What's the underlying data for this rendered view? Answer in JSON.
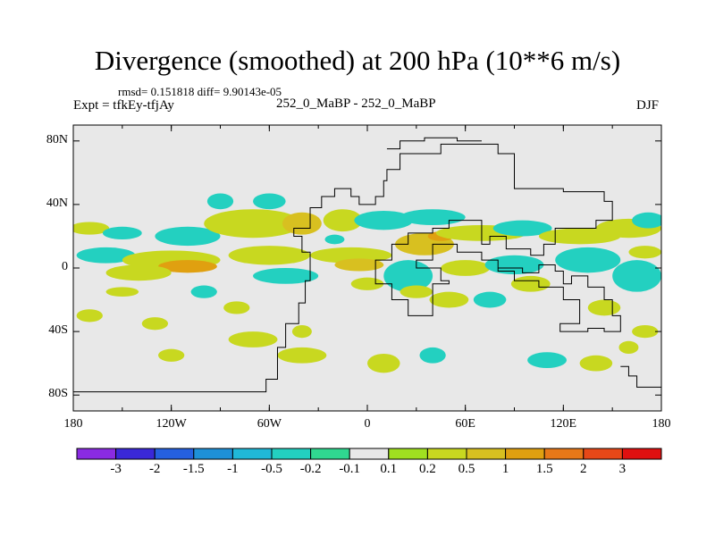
{
  "title": "Divergence (smoothed) at 200 hPa (10**6 m/s)",
  "stats": "rmsd= 0.151818 diff= 9.90143e-05",
  "experiment": "Expt = tfkEy-tfjAy",
  "runs": "252_0_MaBP - 252_0_MaBP",
  "season": "DJF",
  "chart_data": {
    "type": "heatmap",
    "xlim": [
      -180,
      180
    ],
    "ylim": [
      -90,
      90
    ],
    "x_ticks": [
      {
        "value": -180,
        "label": "180"
      },
      {
        "value": -120,
        "label": "120W"
      },
      {
        "value": -60,
        "label": "60W"
      },
      {
        "value": 0,
        "label": "0"
      },
      {
        "value": 60,
        "label": "60E"
      },
      {
        "value": 120,
        "label": "120E"
      },
      {
        "value": 180,
        "label": "180"
      }
    ],
    "y_ticks": [
      {
        "value": 80,
        "label": "80N"
      },
      {
        "value": 40,
        "label": "40N"
      },
      {
        "value": 0,
        "label": "0"
      },
      {
        "value": -40,
        "label": "40S"
      },
      {
        "value": -80,
        "label": "80S"
      }
    ],
    "colorbar": {
      "colors": [
        "#8a2be2",
        "#3a28d8",
        "#2560e0",
        "#1e90d8",
        "#20b8d8",
        "#23d0c0",
        "#30d890",
        "#e8e8e8",
        "#a0e020",
        "#c8d820",
        "#d8c020",
        "#e0a010",
        "#e87818",
        "#e84818",
        "#e01010"
      ],
      "labels": [
        "-3",
        "-2",
        "-1.5",
        "-1",
        "-0.5",
        "-0.2",
        "-0.1",
        "0.1",
        "0.2",
        "0.5",
        "1",
        "1.5",
        "2",
        "3"
      ]
    },
    "background_color": "#e8e8e8",
    "blobs": [
      {
        "lon": -170,
        "lat": 25,
        "rx": 12,
        "ry": 4,
        "level": 0.4
      },
      {
        "lon": -150,
        "lat": 22,
        "rx": 12,
        "ry": 4,
        "level": -0.3
      },
      {
        "lon": -110,
        "lat": 20,
        "rx": 20,
        "ry": 6,
        "level": -0.3
      },
      {
        "lon": -90,
        "lat": 42,
        "rx": 8,
        "ry": 5,
        "level": -0.3
      },
      {
        "lon": -70,
        "lat": 28,
        "rx": 30,
        "ry": 9,
        "level": 0.4
      },
      {
        "lon": -40,
        "lat": 28,
        "rx": 12,
        "ry": 7,
        "level": 0.6
      },
      {
        "lon": -160,
        "lat": 8,
        "rx": 18,
        "ry": 5,
        "level": -0.3
      },
      {
        "lon": -120,
        "lat": 5,
        "rx": 30,
        "ry": 6,
        "level": 0.4
      },
      {
        "lon": -110,
        "lat": 1,
        "rx": 18,
        "ry": 4,
        "level": 1.1
      },
      {
        "lon": -140,
        "lat": -3,
        "rx": 20,
        "ry": 5,
        "level": 0.4
      },
      {
        "lon": -60,
        "lat": 8,
        "rx": 25,
        "ry": 6,
        "level": 0.4
      },
      {
        "lon": -50,
        "lat": -5,
        "rx": 20,
        "ry": 5,
        "level": -0.3
      },
      {
        "lon": -10,
        "lat": 8,
        "rx": 25,
        "ry": 5,
        "level": 0.4
      },
      {
        "lon": -5,
        "lat": 2,
        "rx": 15,
        "ry": 4,
        "level": 0.6
      },
      {
        "lon": -15,
        "lat": 30,
        "rx": 12,
        "ry": 7,
        "level": 0.4
      },
      {
        "lon": -20,
        "lat": 18,
        "rx": 6,
        "ry": 3,
        "level": -0.3
      },
      {
        "lon": 10,
        "lat": 30,
        "rx": 18,
        "ry": 6,
        "level": -0.3
      },
      {
        "lon": 35,
        "lat": 15,
        "rx": 18,
        "ry": 7,
        "level": 0.6
      },
      {
        "lon": 45,
        "lat": 20,
        "rx": 8,
        "ry": 3,
        "level": 1.1
      },
      {
        "lon": 70,
        "lat": 22,
        "rx": 28,
        "ry": 5,
        "level": 0.4
      },
      {
        "lon": 40,
        "lat": 32,
        "rx": 20,
        "ry": 5,
        "level": -0.3
      },
      {
        "lon": 25,
        "lat": -5,
        "rx": 15,
        "ry": 10,
        "level": -0.3
      },
      {
        "lon": 60,
        "lat": 0,
        "rx": 15,
        "ry": 5,
        "level": 0.4
      },
      {
        "lon": 95,
        "lat": 25,
        "rx": 18,
        "ry": 5,
        "level": -0.3
      },
      {
        "lon": 130,
        "lat": 20,
        "rx": 25,
        "ry": 5,
        "level": 0.4
      },
      {
        "lon": 160,
        "lat": 25,
        "rx": 20,
        "ry": 6,
        "level": 0.4
      },
      {
        "lon": 172,
        "lat": 30,
        "rx": 10,
        "ry": 5,
        "level": -0.3
      },
      {
        "lon": 90,
        "lat": 2,
        "rx": 18,
        "ry": 6,
        "level": -0.3
      },
      {
        "lon": 135,
        "lat": 5,
        "rx": 20,
        "ry": 8,
        "level": -0.3
      },
      {
        "lon": 165,
        "lat": -5,
        "rx": 15,
        "ry": 10,
        "level": -0.3
      },
      {
        "lon": 170,
        "lat": 10,
        "rx": 10,
        "ry": 4,
        "level": 0.4
      },
      {
        "lon": -100,
        "lat": -15,
        "rx": 8,
        "ry": 4,
        "level": -0.3
      },
      {
        "lon": -150,
        "lat": -15,
        "rx": 10,
        "ry": 3,
        "level": 0.4
      },
      {
        "lon": -170,
        "lat": -30,
        "rx": 8,
        "ry": 4,
        "level": 0.4
      },
      {
        "lon": -130,
        "lat": -35,
        "rx": 8,
        "ry": 4,
        "level": 0.4
      },
      {
        "lon": -80,
        "lat": -25,
        "rx": 8,
        "ry": 4,
        "level": 0.4
      },
      {
        "lon": -40,
        "lat": -40,
        "rx": 6,
        "ry": 4,
        "level": 0.4
      },
      {
        "lon": 0,
        "lat": -10,
        "rx": 10,
        "ry": 4,
        "level": 0.4
      },
      {
        "lon": 30,
        "lat": -15,
        "rx": 10,
        "ry": 4,
        "level": 0.4
      },
      {
        "lon": 50,
        "lat": -20,
        "rx": 12,
        "ry": 5,
        "level": 0.4
      },
      {
        "lon": 75,
        "lat": -20,
        "rx": 10,
        "ry": 5,
        "level": -0.3
      },
      {
        "lon": 100,
        "lat": -10,
        "rx": 12,
        "ry": 5,
        "level": 0.4
      },
      {
        "lon": 145,
        "lat": -25,
        "rx": 10,
        "ry": 5,
        "level": 0.4
      },
      {
        "lon": 170,
        "lat": -40,
        "rx": 8,
        "ry": 4,
        "level": 0.4
      },
      {
        "lon": -70,
        "lat": -45,
        "rx": 15,
        "ry": 5,
        "level": 0.4
      },
      {
        "lon": -40,
        "lat": -55,
        "rx": 15,
        "ry": 5,
        "level": 0.4
      },
      {
        "lon": 10,
        "lat": -60,
        "rx": 10,
        "ry": 6,
        "level": 0.4
      },
      {
        "lon": 40,
        "lat": -55,
        "rx": 8,
        "ry": 5,
        "level": -0.3
      },
      {
        "lon": 110,
        "lat": -58,
        "rx": 12,
        "ry": 5,
        "level": -0.3
      },
      {
        "lon": 140,
        "lat": -60,
        "rx": 10,
        "ry": 5,
        "level": 0.4
      },
      {
        "lon": 160,
        "lat": -50,
        "rx": 6,
        "ry": 4,
        "level": 0.4
      },
      {
        "lon": -120,
        "lat": -55,
        "rx": 8,
        "ry": 4,
        "level": 0.4
      },
      {
        "lon": -60,
        "lat": 42,
        "rx": 10,
        "ry": 5,
        "level": -0.3
      }
    ],
    "coastlines": [
      [
        [
          -180,
          -78
        ],
        [
          -62,
          -78
        ],
        [
          -62,
          -70
        ],
        [
          -55,
          -70
        ],
        [
          -55,
          -50
        ],
        [
          -50,
          -50
        ],
        [
          -50,
          -35
        ],
        [
          -42,
          -35
        ],
        [
          -42,
          -22
        ],
        [
          -38,
          -22
        ],
        [
          -38,
          -8
        ],
        [
          -35,
          -8
        ],
        [
          -35,
          10
        ],
        [
          -40,
          10
        ],
        [
          -40,
          20
        ],
        [
          -45,
          20
        ],
        [
          -45,
          25
        ],
        [
          -35,
          25
        ],
        [
          -35,
          38
        ],
        [
          -28,
          38
        ],
        [
          -28,
          45
        ],
        [
          -20,
          45
        ],
        [
          -20,
          50
        ],
        [
          -10,
          50
        ],
        [
          -10,
          45
        ],
        [
          -5,
          45
        ],
        [
          -5,
          40
        ],
        [
          5,
          40
        ],
        [
          5,
          45
        ],
        [
          10,
          45
        ],
        [
          10,
          55
        ],
        [
          12,
          55
        ],
        [
          12,
          62
        ],
        [
          20,
          62
        ],
        [
          20,
          72
        ],
        [
          45,
          72
        ],
        [
          45,
          78
        ],
        [
          80,
          78
        ],
        [
          80,
          72
        ],
        [
          90,
          72
        ],
        [
          90,
          50
        ],
        [
          120,
          50
        ],
        [
          120,
          48
        ],
        [
          145,
          48
        ],
        [
          145,
          42
        ],
        [
          150,
          42
        ],
        [
          150,
          30
        ],
        [
          140,
          30
        ],
        [
          140,
          25
        ],
        [
          115,
          25
        ],
        [
          115,
          15
        ],
        [
          108,
          15
        ],
        [
          108,
          8
        ],
        [
          100,
          8
        ],
        [
          100,
          12
        ],
        [
          85,
          12
        ],
        [
          85,
          20
        ],
        [
          75,
          20
        ],
        [
          75,
          15
        ],
        [
          70,
          15
        ],
        [
          70,
          30
        ],
        [
          50,
          30
        ],
        [
          50,
          25
        ],
        [
          40,
          25
        ],
        [
          40,
          22
        ],
        [
          25,
          22
        ],
        [
          25,
          15
        ],
        [
          15,
          15
        ],
        [
          15,
          10
        ],
        [
          15,
          5
        ],
        [
          5,
          5
        ],
        [
          5,
          -10
        ],
        [
          15,
          -10
        ],
        [
          15,
          -20
        ],
        [
          25,
          -20
        ],
        [
          25,
          -30
        ],
        [
          40,
          -30
        ],
        [
          40,
          -10
        ],
        [
          50,
          -10
        ],
        [
          50,
          -8
        ],
        [
          45,
          -8
        ],
        [
          45,
          0
        ],
        [
          30,
          0
        ],
        [
          30,
          5
        ],
        [
          40,
          5
        ],
        [
          40,
          15
        ],
        [
          55,
          15
        ],
        [
          55,
          10
        ],
        [
          70,
          10
        ],
        [
          70,
          5
        ],
        [
          80,
          5
        ],
        [
          80,
          -2
        ],
        [
          90,
          -2
        ],
        [
          90,
          -8
        ],
        [
          105,
          -8
        ],
        [
          105,
          -12
        ],
        [
          120,
          -12
        ],
        [
          120,
          -20
        ],
        [
          130,
          -20
        ],
        [
          130,
          -35
        ],
        [
          118,
          -35
        ],
        [
          118,
          -40
        ],
        [
          135,
          -40
        ],
        [
          135,
          -38
        ],
        [
          145,
          -38
        ],
        [
          145,
          -40
        ],
        [
          155,
          -40
        ],
        [
          155,
          -30
        ],
        [
          150,
          -30
        ],
        [
          150,
          -20
        ],
        [
          145,
          -20
        ],
        [
          145,
          -12
        ],
        [
          135,
          -12
        ],
        [
          135,
          -5
        ],
        [
          125,
          -5
        ],
        [
          125,
          -10
        ],
        [
          120,
          -10
        ],
        [
          120,
          -2
        ],
        [
          115,
          -2
        ],
        [
          115,
          2
        ],
        [
          105,
          2
        ],
        [
          105,
          -3
        ],
        [
          95,
          -3
        ],
        [
          95,
          0
        ],
        [
          80,
          0
        ]
      ],
      [
        [
          12,
          75
        ],
        [
          20,
          75
        ],
        [
          20,
          80
        ],
        [
          35,
          80
        ],
        [
          35,
          82
        ],
        [
          55,
          82
        ],
        [
          55,
          80
        ],
        [
          70,
          80
        ]
      ],
      [
        [
          155,
          -62
        ],
        [
          160,
          -62
        ],
        [
          160,
          -68
        ],
        [
          165,
          -68
        ],
        [
          165,
          -75
        ],
        [
          180,
          -75
        ]
      ]
    ]
  }
}
